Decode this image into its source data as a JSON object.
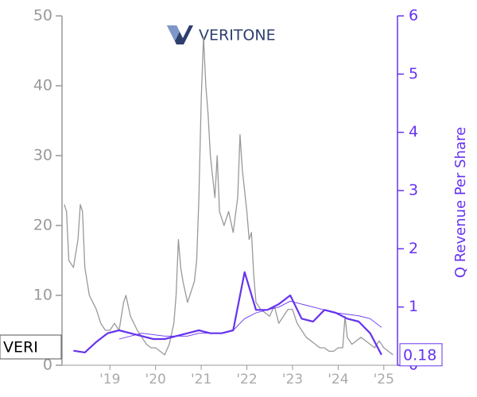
{
  "chart_data": {
    "type": "line",
    "logo": "VERITONE",
    "y2label": "Q Revenue Per Share",
    "xlim": [
      2017.95,
      2025.3
    ],
    "xticks": [
      {
        "value": 2019,
        "label": "'19"
      },
      {
        "value": 2020,
        "label": "'20"
      },
      {
        "value": 2021,
        "label": "'21"
      },
      {
        "value": 2022,
        "label": "'22"
      },
      {
        "value": 2023,
        "label": "'23"
      },
      {
        "value": 2024,
        "label": "'24"
      },
      {
        "value": 2025,
        "label": "'25"
      }
    ],
    "ylim": [
      0,
      50
    ],
    "yticks": [
      0,
      10,
      20,
      30,
      40,
      50
    ],
    "y2lim": [
      0,
      6
    ],
    "y2ticks": [
      0,
      1,
      2,
      3,
      4,
      5,
      6
    ],
    "series": [
      {
        "name": "VERI",
        "color": "#999999",
        "width": 1.3,
        "x": [
          2018.0,
          2018.05,
          2018.1,
          2018.2,
          2018.3,
          2018.35,
          2018.4,
          2018.45,
          2018.55,
          2018.7,
          2018.8,
          2018.9,
          2019.0,
          2019.1,
          2019.2,
          2019.3,
          2019.35,
          2019.45,
          2019.6,
          2019.7,
          2019.8,
          2019.9,
          2020.0,
          2020.1,
          2020.2,
          2020.3,
          2020.4,
          2020.45,
          2020.5,
          2020.55,
          2020.6,
          2020.7,
          2020.75,
          2020.85,
          2020.9,
          2020.95,
          2021.0,
          2021.05,
          2021.1,
          2021.15,
          2021.2,
          2021.3,
          2021.35,
          2021.4,
          2021.5,
          2021.6,
          2021.7,
          2021.8,
          2021.85,
          2021.9,
          2022.0,
          2022.05,
          2022.1,
          2022.15,
          2022.2,
          2022.3,
          2022.4,
          2022.5,
          2022.6,
          2022.7,
          2022.8,
          2022.9,
          2023.0,
          2023.1,
          2023.2,
          2023.3,
          2023.4,
          2023.5,
          2023.6,
          2023.7,
          2023.8,
          2023.9,
          2024.0,
          2024.1,
          2024.15,
          2024.2,
          2024.3,
          2024.5,
          2024.7,
          2024.8,
          2024.9,
          2025.0,
          2025.1,
          2025.2
        ],
        "values": [
          23,
          22,
          15,
          14,
          18,
          23,
          22,
          14,
          10,
          8,
          6,
          5,
          5,
          6,
          5,
          9,
          10,
          7,
          5,
          4,
          3,
          2.5,
          2.5,
          2,
          1.5,
          3,
          6,
          10,
          18,
          14,
          12,
          9,
          10,
          12,
          15,
          24,
          38,
          47,
          40,
          36,
          30,
          24,
          30,
          22,
          20,
          22,
          19,
          24,
          33,
          28,
          22,
          18,
          19,
          13,
          9,
          8,
          7.5,
          7,
          8.5,
          6,
          7,
          8,
          8,
          6,
          5,
          4,
          3.5,
          3,
          2.5,
          2.5,
          2,
          2,
          2.5,
          2.5,
          7,
          4,
          3,
          4,
          3,
          2.5,
          3.5,
          2.5,
          2,
          1.5
        ]
      },
      {
        "name": "Q Revenue Per Share",
        "color": "#6633ee",
        "width": 2.2,
        "axis": "y2",
        "x": [
          2018.2,
          2018.45,
          2018.7,
          2018.95,
          2019.2,
          2019.45,
          2019.7,
          2019.95,
          2020.2,
          2020.45,
          2020.7,
          2020.95,
          2021.2,
          2021.45,
          2021.7,
          2021.95,
          2022.2,
          2022.45,
          2022.7,
          2022.95,
          2023.2,
          2023.45,
          2023.7,
          2023.95,
          2024.2,
          2024.45,
          2024.7,
          2024.95
        ],
        "values": [
          0.25,
          0.22,
          0.4,
          0.55,
          0.6,
          0.55,
          0.5,
          0.45,
          0.45,
          0.5,
          0.55,
          0.6,
          0.55,
          0.55,
          0.6,
          1.6,
          0.95,
          0.95,
          1.05,
          1.2,
          0.8,
          0.75,
          0.95,
          0.9,
          0.8,
          0.75,
          0.55,
          0.18
        ]
      },
      {
        "color": "#6633ee",
        "width": 0.9,
        "axis": "y2",
        "x": [
          2019.2,
          2019.7,
          2020.2,
          2020.7,
          2020.95,
          2021.45,
          2021.7,
          2021.95,
          2022.2,
          2022.7,
          2022.95,
          2023.45,
          2023.95,
          2024.45,
          2024.7,
          2024.95
        ],
        "values": [
          0.45,
          0.55,
          0.5,
          0.5,
          0.55,
          0.55,
          0.6,
          0.8,
          0.9,
          1.0,
          1.1,
          1.0,
          0.9,
          0.85,
          0.8,
          0.65
        ]
      }
    ]
  }
}
